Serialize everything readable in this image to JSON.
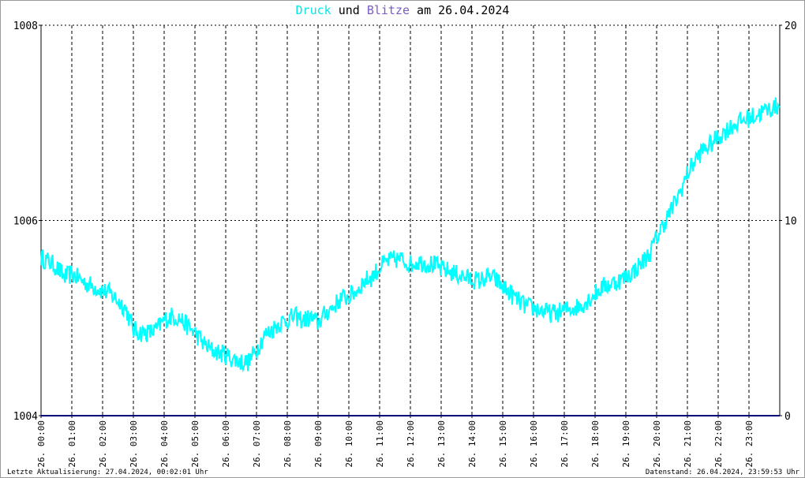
{
  "title": {
    "part1": "Druck",
    "part2": " und ",
    "part3": "Blitze",
    "part4": " am 26.04.2024"
  },
  "footer": {
    "left": "Letzte Aktualisierung: 27.04.2024, 00:02:01 Uhr",
    "right": "Datenstand: 26.04.2024, 23:59:53 Uhr"
  },
  "colors": {
    "druck": "#00ffff",
    "blitze": "#00007a",
    "title_druck": "#00e8e8",
    "title_blitze": "#7a5cc8",
    "grid": "#000000"
  },
  "chart_data": {
    "type": "line",
    "title": "Druck und Blitze am 26.04.2024",
    "grid": true,
    "x_tick_labels": [
      "26. 00:00",
      "26. 01:00",
      "26. 02:00",
      "26. 03:00",
      "26. 04:00",
      "26. 05:00",
      "26. 06:00",
      "26. 07:00",
      "26. 08:00",
      "26. 09:00",
      "26. 10:00",
      "26. 11:00",
      "26. 12:00",
      "26. 13:00",
      "26. 14:00",
      "26. 15:00",
      "26. 16:00",
      "26. 17:00",
      "26. 18:00",
      "26. 19:00",
      "26. 20:00",
      "26. 21:00",
      "26. 22:00",
      "26. 23:00"
    ],
    "y_left": {
      "ylim": [
        1004,
        1008
      ],
      "ticks": [
        "1004",
        "1006",
        "1008"
      ]
    },
    "y_right": {
      "ylim": [
        0,
        20
      ],
      "ticks": [
        "0",
        "10",
        "20"
      ]
    },
    "series": [
      {
        "name": "Druck",
        "axis": "left",
        "x_hours": [
          0,
          0.25,
          0.5,
          0.75,
          1,
          1.25,
          1.5,
          1.75,
          2,
          2.25,
          2.5,
          2.75,
          3,
          3.25,
          3.5,
          3.75,
          4,
          4.25,
          4.5,
          4.75,
          5,
          5.25,
          5.5,
          5.75,
          6,
          6.25,
          6.5,
          6.75,
          7,
          7.25,
          7.5,
          7.75,
          8,
          8.25,
          8.5,
          8.75,
          9,
          9.25,
          9.5,
          9.75,
          10,
          10.25,
          10.5,
          10.75,
          11,
          11.25,
          11.5,
          11.75,
          12,
          12.25,
          12.5,
          12.75,
          13,
          13.25,
          13.5,
          13.75,
          14,
          14.25,
          14.5,
          14.75,
          15,
          15.25,
          15.5,
          15.75,
          16,
          16.25,
          16.5,
          16.75,
          17,
          17.25,
          17.5,
          17.75,
          18,
          18.25,
          18.5,
          18.75,
          19,
          19.25,
          19.5,
          19.75,
          20,
          20.25,
          20.5,
          20.75,
          21,
          21.25,
          21.5,
          21.75,
          22,
          22.25,
          22.5,
          22.75,
          23,
          23.25,
          23.5,
          23.75,
          24
        ],
        "values": [
          1005.62,
          1005.58,
          1005.52,
          1005.42,
          1005.45,
          1005.4,
          1005.35,
          1005.32,
          1005.28,
          1005.25,
          1005.18,
          1005.1,
          1004.88,
          1004.85,
          1004.85,
          1004.88,
          1004.98,
          1005.02,
          1005.0,
          1004.92,
          1004.85,
          1004.75,
          1004.68,
          1004.65,
          1004.62,
          1004.58,
          1004.55,
          1004.55,
          1004.68,
          1004.82,
          1004.88,
          1004.95,
          1004.98,
          1005.02,
          1004.98,
          1005.0,
          1004.95,
          1005.05,
          1005.12,
          1005.2,
          1005.22,
          1005.28,
          1005.38,
          1005.42,
          1005.52,
          1005.58,
          1005.6,
          1005.6,
          1005.55,
          1005.58,
          1005.56,
          1005.55,
          1005.5,
          1005.48,
          1005.45,
          1005.42,
          1005.4,
          1005.38,
          1005.42,
          1005.4,
          1005.32,
          1005.25,
          1005.18,
          1005.12,
          1005.1,
          1005.08,
          1005.05,
          1005.05,
          1005.08,
          1005.1,
          1005.12,
          1005.18,
          1005.25,
          1005.32,
          1005.35,
          1005.38,
          1005.42,
          1005.48,
          1005.56,
          1005.65,
          1005.82,
          1005.98,
          1006.12,
          1006.28,
          1006.48,
          1006.62,
          1006.72,
          1006.78,
          1006.85,
          1006.92,
          1006.98,
          1007.02,
          1007.05,
          1007.08,
          1007.12,
          1007.15,
          1007.18
        ]
      },
      {
        "name": "Blitze",
        "axis": "right",
        "x_hours": [
          0,
          24
        ],
        "values": [
          0,
          0
        ]
      }
    ]
  }
}
